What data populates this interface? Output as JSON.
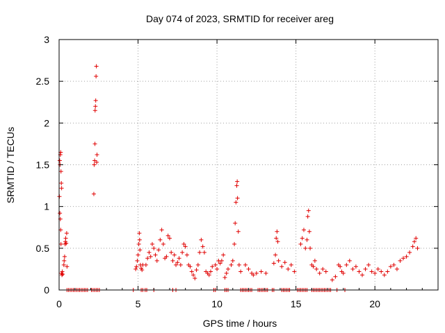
{
  "chart_data": {
    "type": "scatter",
    "title": "Day 074 of 2023, SRMTID for receiver areg",
    "xlabel": "GPS time / hours",
    "ylabel": "SRMTID / TECUs",
    "xlim": [
      0,
      24
    ],
    "ylim": [
      0,
      3
    ],
    "xticks": [
      0,
      5,
      10,
      15,
      20
    ],
    "yticks": [
      0,
      0.5,
      1,
      1.5,
      2,
      2.5,
      3
    ],
    "xtick_labels": [
      "0",
      "5",
      "10",
      "15",
      "20"
    ],
    "ytick_labels": [
      "0",
      "0.5",
      "1",
      "1.5",
      "2",
      "2.5",
      "3"
    ],
    "grid": true,
    "marker": "plus",
    "color": "#e00000",
    "series": [
      {
        "name": "SRMTID",
        "points": [
          [
            0.02,
            1.12
          ],
          [
            0.04,
            1.55
          ],
          [
            0.06,
            1.5
          ],
          [
            0.08,
            1.62
          ],
          [
            0.1,
            1.65
          ],
          [
            0.12,
            1.42
          ],
          [
            0.14,
            1.28
          ],
          [
            0.16,
            1.22
          ],
          [
            0.05,
            0.92
          ],
          [
            0.08,
            0.85
          ],
          [
            0.1,
            0.72
          ],
          [
            0.12,
            0.55
          ],
          [
            0.15,
            0.2
          ],
          [
            0.18,
            0.18
          ],
          [
            0.2,
            0.22
          ],
          [
            0.22,
            0.19
          ],
          [
            0.3,
            0.3
          ],
          [
            0.32,
            0.35
          ],
          [
            0.35,
            0.4
          ],
          [
            0.38,
            0.55
          ],
          [
            0.4,
            0.58
          ],
          [
            0.42,
            0.62
          ],
          [
            0.45,
            0.56
          ],
          [
            0.48,
            0.68
          ],
          [
            0.5,
            0.28
          ],
          [
            0.5,
            0
          ],
          [
            0.6,
            0
          ],
          [
            0.7,
            0
          ],
          [
            0.8,
            0
          ],
          [
            0.9,
            0
          ],
          [
            1.0,
            0
          ],
          [
            1.1,
            0
          ],
          [
            1.2,
            0
          ],
          [
            1.3,
            0
          ],
          [
            1.4,
            0
          ],
          [
            1.5,
            0
          ],
          [
            1.6,
            0
          ],
          [
            1.7,
            0
          ],
          [
            1.8,
            0
          ],
          [
            2.05,
            0
          ],
          [
            2.15,
            0
          ],
          [
            2.25,
            0
          ],
          [
            2.35,
            0
          ],
          [
            2.45,
            0
          ],
          [
            2.55,
            0
          ],
          [
            2.2,
            1.15
          ],
          [
            2.22,
            1.5
          ],
          [
            2.25,
            1.55
          ],
          [
            2.27,
            1.75
          ],
          [
            2.28,
            2.15
          ],
          [
            2.3,
            2.2
          ],
          [
            2.32,
            2.27
          ],
          [
            2.34,
            2.56
          ],
          [
            2.36,
            2.68
          ],
          [
            2.38,
            1.53
          ],
          [
            2.4,
            1.62
          ],
          [
            4.7,
            0
          ],
          [
            5.2,
            0
          ],
          [
            5.3,
            0
          ],
          [
            4.85,
            0.25
          ],
          [
            4.9,
            0.28
          ],
          [
            4.95,
            0.35
          ],
          [
            5.0,
            0.42
          ],
          [
            5.05,
            0.55
          ],
          [
            5.08,
            0.68
          ],
          [
            5.1,
            0.6
          ],
          [
            5.12,
            0.48
          ],
          [
            5.15,
            0.3
          ],
          [
            5.2,
            0.26
          ],
          [
            5.25,
            0.24
          ],
          [
            5.3,
            0.3
          ],
          [
            5.5,
            0.3
          ],
          [
            5.6,
            0.38
          ],
          [
            5.7,
            0.45
          ],
          [
            5.8,
            0.4
          ],
          [
            5.9,
            0.55
          ],
          [
            6.0,
            0.5
          ],
          [
            6.1,
            0.42
          ],
          [
            6.2,
            0.35
          ],
          [
            6.3,
            0.48
          ],
          [
            6.4,
            0.6
          ],
          [
            6.5,
            0.72
          ],
          [
            6.6,
            0.55
          ],
          [
            6.7,
            0.38
          ],
          [
            6.8,
            0.4
          ],
          [
            6.9,
            0.65
          ],
          [
            7.0,
            0.62
          ],
          [
            7.1,
            0.45
          ],
          [
            7.2,
            0.35
          ],
          [
            7.3,
            0.42
          ],
          [
            7.4,
            0.3
          ],
          [
            7.5,
            0.33
          ],
          [
            7.6,
            0.38
          ],
          [
            7.7,
            0.3
          ],
          [
            7.8,
            0.45
          ],
          [
            7.9,
            0.55
          ],
          [
            8.0,
            0.52
          ],
          [
            8.1,
            0.42
          ],
          [
            8.2,
            0.3
          ],
          [
            8.3,
            0.28
          ],
          [
            8.4,
            0.22
          ],
          [
            8.5,
            0.18
          ],
          [
            8.6,
            0.14
          ],
          [
            8.7,
            0.24
          ],
          [
            8.8,
            0.3
          ],
          [
            8.9,
            0.45
          ],
          [
            9.0,
            0.6
          ],
          [
            9.1,
            0.52
          ],
          [
            9.2,
            0.45
          ],
          [
            9.3,
            0.22
          ],
          [
            9.4,
            0.2
          ],
          [
            9.5,
            0.18
          ],
          [
            9.6,
            0.22
          ],
          [
            9.7,
            0.28
          ],
          [
            9.9,
            0.3
          ],
          [
            10.0,
            0.25
          ],
          [
            10.1,
            0.35
          ],
          [
            10.2,
            0.32
          ],
          [
            10.3,
            0.35
          ],
          [
            10.4,
            0.42
          ],
          [
            10.5,
            0.15
          ],
          [
            10.6,
            0.2
          ],
          [
            10.7,
            0.25
          ],
          [
            10.9,
            0.3
          ],
          [
            11.0,
            0.35
          ],
          [
            11.1,
            0.55
          ],
          [
            11.15,
            0.8
          ],
          [
            11.2,
            1.05
          ],
          [
            11.25,
            1.25
          ],
          [
            11.28,
            1.3
          ],
          [
            11.3,
            1.1
          ],
          [
            11.35,
            0.7
          ],
          [
            11.4,
            0.3
          ],
          [
            11.5,
            0.22
          ],
          [
            11.8,
            0.3
          ],
          [
            12.0,
            0.25
          ],
          [
            12.2,
            0.2
          ],
          [
            12.3,
            0.18
          ],
          [
            12.5,
            0.2
          ],
          [
            12.8,
            0.22
          ],
          [
            13.1,
            0.2
          ],
          [
            13.6,
            0.32
          ],
          [
            13.7,
            0.42
          ],
          [
            13.75,
            0.62
          ],
          [
            13.8,
            0.7
          ],
          [
            13.85,
            0.58
          ],
          [
            13.9,
            0.35
          ],
          [
            14.1,
            0.28
          ],
          [
            14.3,
            0.33
          ],
          [
            14.5,
            0.25
          ],
          [
            14.7,
            0.3
          ],
          [
            14.9,
            0.22
          ],
          [
            15.3,
            0.55
          ],
          [
            15.4,
            0.62
          ],
          [
            15.5,
            0.72
          ],
          [
            15.6,
            0.5
          ],
          [
            15.7,
            0.6
          ],
          [
            15.75,
            0.88
          ],
          [
            15.8,
            0.95
          ],
          [
            15.85,
            0.7
          ],
          [
            15.9,
            0.5
          ],
          [
            16.0,
            0.3
          ],
          [
            16.1,
            0.28
          ],
          [
            16.2,
            0.35
          ],
          [
            16.3,
            0.25
          ],
          [
            16.5,
            0.2
          ],
          [
            16.7,
            0.25
          ],
          [
            16.9,
            0.22
          ],
          [
            17.3,
            0.12
          ],
          [
            17.5,
            0.16
          ],
          [
            17.7,
            0.3
          ],
          [
            17.8,
            0.28
          ],
          [
            17.9,
            0.22
          ],
          [
            18.0,
            0.2
          ],
          [
            18.2,
            0.3
          ],
          [
            18.4,
            0.35
          ],
          [
            18.6,
            0.25
          ],
          [
            18.8,
            0.28
          ],
          [
            19.0,
            0.22
          ],
          [
            19.2,
            0.18
          ],
          [
            19.4,
            0.25
          ],
          [
            19.6,
            0.3
          ],
          [
            19.8,
            0.22
          ],
          [
            20.0,
            0.2
          ],
          [
            20.2,
            0.25
          ],
          [
            20.4,
            0.22
          ],
          [
            20.6,
            0.18
          ],
          [
            20.8,
            0.22
          ],
          [
            21.0,
            0.28
          ],
          [
            21.2,
            0.3
          ],
          [
            21.4,
            0.25
          ],
          [
            21.6,
            0.35
          ],
          [
            21.8,
            0.38
          ],
          [
            22.0,
            0.4
          ],
          [
            22.2,
            0.45
          ],
          [
            22.4,
            0.52
          ],
          [
            22.5,
            0.58
          ],
          [
            22.6,
            0.62
          ],
          [
            22.7,
            0.5
          ],
          [
            5.45,
            0
          ],
          [
            5.55,
            0
          ],
          [
            6.0,
            0
          ],
          [
            7.2,
            0
          ],
          [
            7.4,
            0
          ],
          [
            9.8,
            0
          ],
          [
            9.9,
            0
          ],
          [
            10.5,
            0
          ],
          [
            10.6,
            0
          ],
          [
            10.7,
            0
          ],
          [
            11.5,
            0
          ],
          [
            11.6,
            0
          ],
          [
            11.7,
            0
          ],
          [
            11.8,
            0
          ],
          [
            11.9,
            0
          ],
          [
            12.0,
            0
          ],
          [
            12.1,
            0
          ],
          [
            12.2,
            0
          ],
          [
            12.6,
            0
          ],
          [
            12.7,
            0
          ],
          [
            12.8,
            0
          ],
          [
            12.9,
            0
          ],
          [
            13.0,
            0
          ],
          [
            13.1,
            0
          ],
          [
            13.2,
            0
          ],
          [
            13.5,
            0
          ],
          [
            13.6,
            0
          ],
          [
            14.1,
            0
          ],
          [
            14.2,
            0
          ],
          [
            14.3,
            0
          ],
          [
            14.4,
            0
          ],
          [
            14.5,
            0
          ],
          [
            14.6,
            0
          ],
          [
            15.1,
            0
          ],
          [
            15.2,
            0
          ],
          [
            15.3,
            0
          ],
          [
            15.4,
            0
          ],
          [
            15.5,
            0
          ],
          [
            15.6,
            0
          ],
          [
            15.7,
            0
          ],
          [
            16.0,
            0
          ],
          [
            16.1,
            0
          ],
          [
            16.2,
            0
          ],
          [
            16.3,
            0
          ],
          [
            16.4,
            0
          ],
          [
            16.5,
            0
          ],
          [
            16.6,
            0
          ],
          [
            16.7,
            0
          ],
          [
            16.8,
            0
          ],
          [
            16.9,
            0
          ],
          [
            17.0,
            0
          ],
          [
            17.1,
            0
          ],
          [
            17.2,
            0
          ],
          [
            17.6,
            0
          ],
          [
            18.1,
            0
          ]
        ]
      }
    ]
  }
}
